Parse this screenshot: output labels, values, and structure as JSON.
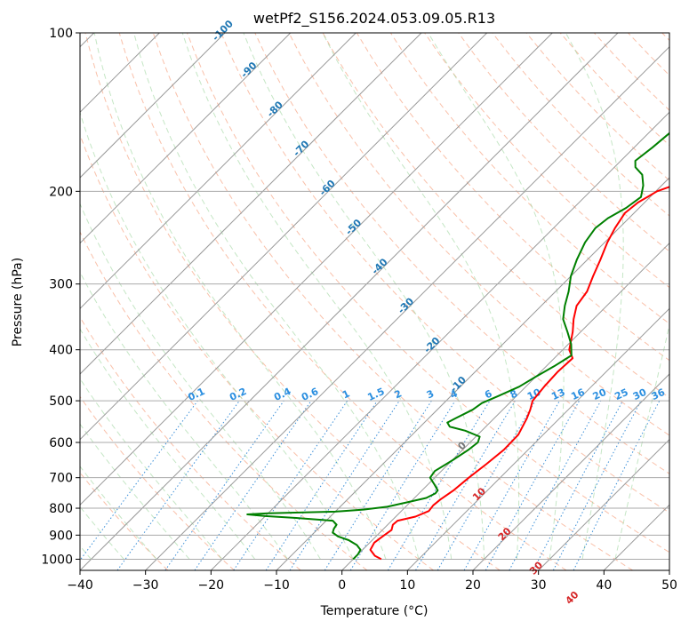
{
  "chart_data": {
    "type": "line",
    "title": "wetPf2_S156.2024.053.09.05.R13",
    "xlabel": "Temperature (°C)",
    "ylabel": "Pressure (hPa)",
    "xlim": [
      -40,
      50
    ],
    "ylim": [
      1050,
      100
    ],
    "y_scale": "log",
    "grid": true,
    "x_ticks": [
      -40,
      -30,
      -20,
      -10,
      0,
      10,
      20,
      30,
      40,
      50
    ],
    "x_tick_labels": [
      "−40",
      "−30",
      "−20",
      "−10",
      "0",
      "10",
      "20",
      "30",
      "40",
      "50"
    ],
    "y_ticks": [
      100,
      200,
      300,
      400,
      500,
      600,
      700,
      800,
      900,
      1000
    ],
    "y_tick_labels": [
      "100",
      "200",
      "300",
      "400",
      "500",
      "600",
      "700",
      "800",
      "900",
      "1000"
    ],
    "series": [
      {
        "color": "#ff0000",
        "points": [
          [
            1000,
            4.3
          ],
          [
            985,
            2.8
          ],
          [
            960,
            1.2
          ],
          [
            930,
            0.7
          ],
          [
            905,
            1.0
          ],
          [
            880,
            1.4
          ],
          [
            860,
            0.8
          ],
          [
            845,
            0.9
          ],
          [
            830,
            3.0
          ],
          [
            810,
            4.2
          ],
          [
            790,
            4.0
          ],
          [
            770,
            4.2
          ],
          [
            740,
            4.8
          ],
          [
            700,
            5.2
          ],
          [
            660,
            5.8
          ],
          [
            620,
            6.3
          ],
          [
            580,
            6.2
          ],
          [
            560,
            5.6
          ],
          [
            540,
            5.0
          ],
          [
            520,
            4.2
          ],
          [
            500,
            3.2
          ],
          [
            470,
            2.8
          ],
          [
            440,
            2.6
          ],
          [
            415,
            2.8
          ],
          [
            400,
            1.0
          ],
          [
            370,
            -1.2
          ],
          [
            350,
            -3.0
          ],
          [
            330,
            -4.6
          ],
          [
            310,
            -5.2
          ],
          [
            290,
            -6.6
          ],
          [
            270,
            -8.0
          ],
          [
            250,
            -9.6
          ],
          [
            235,
            -10.6
          ],
          [
            220,
            -11.4
          ],
          [
            210,
            -11.0
          ],
          [
            200,
            -9.8
          ],
          [
            190,
            -6.6
          ],
          [
            180,
            -2.0
          ],
          [
            170,
            3.2
          ],
          [
            160,
            8.4
          ],
          [
            150,
            12.2
          ],
          [
            140,
            15.8
          ],
          [
            130,
            19.6
          ],
          [
            120,
            24.5
          ],
          [
            110,
            29.0
          ],
          [
            100,
            33.4
          ]
        ]
      },
      {
        "color": "#008000",
        "points": [
          [
            1000,
            0.0
          ],
          [
            980,
            0.0
          ],
          [
            960,
            -0.3
          ],
          [
            940,
            -1.6
          ],
          [
            920,
            -3.6
          ],
          [
            905,
            -5.8
          ],
          [
            890,
            -7.2
          ],
          [
            875,
            -7.6
          ],
          [
            860,
            -7.8
          ],
          [
            845,
            -9.0
          ],
          [
            835,
            -15.0
          ],
          [
            828,
            -20.0
          ],
          [
            822,
            -23.0
          ],
          [
            818,
            -20.0
          ],
          [
            812,
            -10.0
          ],
          [
            805,
            -6.0
          ],
          [
            795,
            -2.8
          ],
          [
            780,
            -0.5
          ],
          [
            765,
            1.8
          ],
          [
            750,
            2.5
          ],
          [
            740,
            2.4
          ],
          [
            720,
            0.9
          ],
          [
            700,
            -0.7
          ],
          [
            680,
            -1.0
          ],
          [
            650,
            0.0
          ],
          [
            620,
            0.9
          ],
          [
            600,
            1.2
          ],
          [
            585,
            0.6
          ],
          [
            570,
            -2.5
          ],
          [
            560,
            -5.5
          ],
          [
            550,
            -6.5
          ],
          [
            540,
            -5.9
          ],
          [
            520,
            -4.6
          ],
          [
            505,
            -4.2
          ],
          [
            490,
            -2.8
          ],
          [
            470,
            -1.0
          ],
          [
            450,
            0.0
          ],
          [
            430,
            1.2
          ],
          [
            410,
            2.2
          ],
          [
            390,
            0.4
          ],
          [
            370,
            -2.0
          ],
          [
            350,
            -4.6
          ],
          [
            330,
            -6.4
          ],
          [
            310,
            -8.0
          ],
          [
            290,
            -10.0
          ],
          [
            270,
            -11.6
          ],
          [
            250,
            -13.0
          ],
          [
            235,
            -13.6
          ],
          [
            225,
            -13.2
          ],
          [
            215,
            -12.0
          ],
          [
            205,
            -11.4
          ],
          [
            195,
            -12.8
          ],
          [
            186,
            -14.6
          ],
          [
            180,
            -16.8
          ],
          [
            175,
            -17.8
          ],
          [
            165,
            -17.2
          ],
          [
            155,
            -16.8
          ],
          [
            145,
            -16.5
          ],
          [
            135,
            -14.9
          ],
          [
            125,
            -12.3
          ],
          [
            115,
            -9.4
          ],
          [
            108,
            -7.4
          ],
          [
            100,
            -4.8
          ]
        ]
      }
    ],
    "isotherm_labels": [
      "-100",
      "-90",
      "-80",
      "-70",
      "-60",
      "-50",
      "-40",
      "-30",
      "-20",
      "-10",
      "0",
      "10",
      "20",
      "30",
      "40"
    ],
    "mixing_ratio_labels": [
      "0.1",
      "0.2",
      "0.4",
      "0.6",
      "1",
      "1.5",
      "2",
      "3",
      "4",
      "6",
      "8",
      "10",
      "13",
      "16",
      "20",
      "25",
      "30",
      "36"
    ]
  }
}
